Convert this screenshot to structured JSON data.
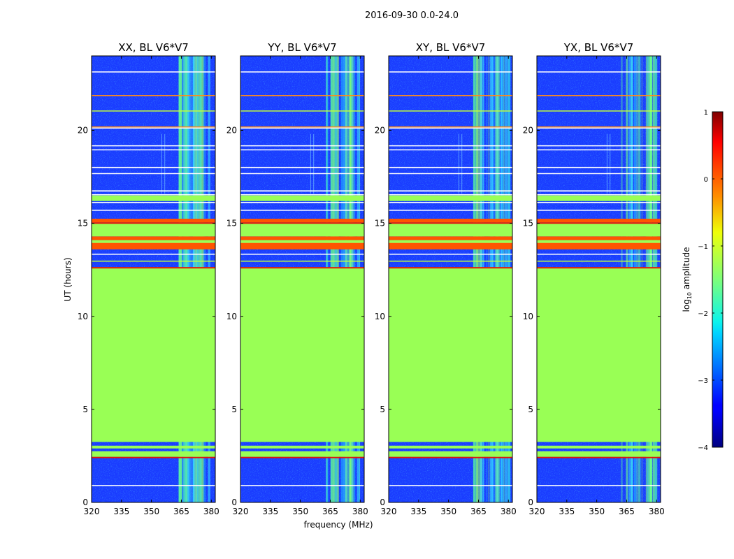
{
  "suptitle": "2016-09-30 0.0-24.0",
  "chart_data": {
    "type": "heatmap",
    "title": "2016-09-30 0.0-24.0",
    "xlabel": "frequency (MHz)",
    "ylabel": "UT (hours)",
    "xlim": [
      320,
      382
    ],
    "ylim": [
      0,
      24
    ],
    "xticks": [
      320,
      335,
      350,
      365,
      380
    ],
    "yticks": [
      0,
      5,
      10,
      15,
      20
    ],
    "panels": [
      {
        "title": "XX, BL V6*V7"
      },
      {
        "title": "YY, BL V6*V7"
      },
      {
        "title": "XY, BL V6*V7"
      },
      {
        "title": "YX, BL V6*V7"
      }
    ],
    "colorbar": {
      "label": "log",
      "label_sub": "10",
      "label_rest": " amplitude",
      "range": [
        -4,
        1
      ],
      "ticks": [
        "1",
        "0",
        "−1",
        "−2",
        "−3",
        "−4"
      ],
      "tick_values": [
        1,
        0,
        -1,
        -2,
        -3,
        -4
      ],
      "colormap": "jet"
    },
    "flagged_uniform_bands_hours": [
      {
        "from": 3.25,
        "to": 12.65,
        "color": "#99ff55"
      },
      {
        "from": 2.45,
        "to": 2.75,
        "color": "#99ff55"
      },
      {
        "from": 2.9,
        "to": 3.05,
        "color": "#99ff55"
      },
      {
        "from": 13.6,
        "to": 13.95,
        "color": "#ff5500"
      },
      {
        "from": 13.95,
        "to": 14.1,
        "color": "#99ff55"
      },
      {
        "from": 14.1,
        "to": 14.3,
        "color": "#ff5500"
      },
      {
        "from": 14.3,
        "to": 15.05,
        "color": "#99ff55"
      },
      {
        "from": 15.05,
        "to": 15.25,
        "color": "#ff5500"
      },
      {
        "from": 16.2,
        "to": 16.5,
        "color": "#99ff55"
      }
    ],
    "rfi_region_mhz": [
      362,
      380
    ]
  }
}
